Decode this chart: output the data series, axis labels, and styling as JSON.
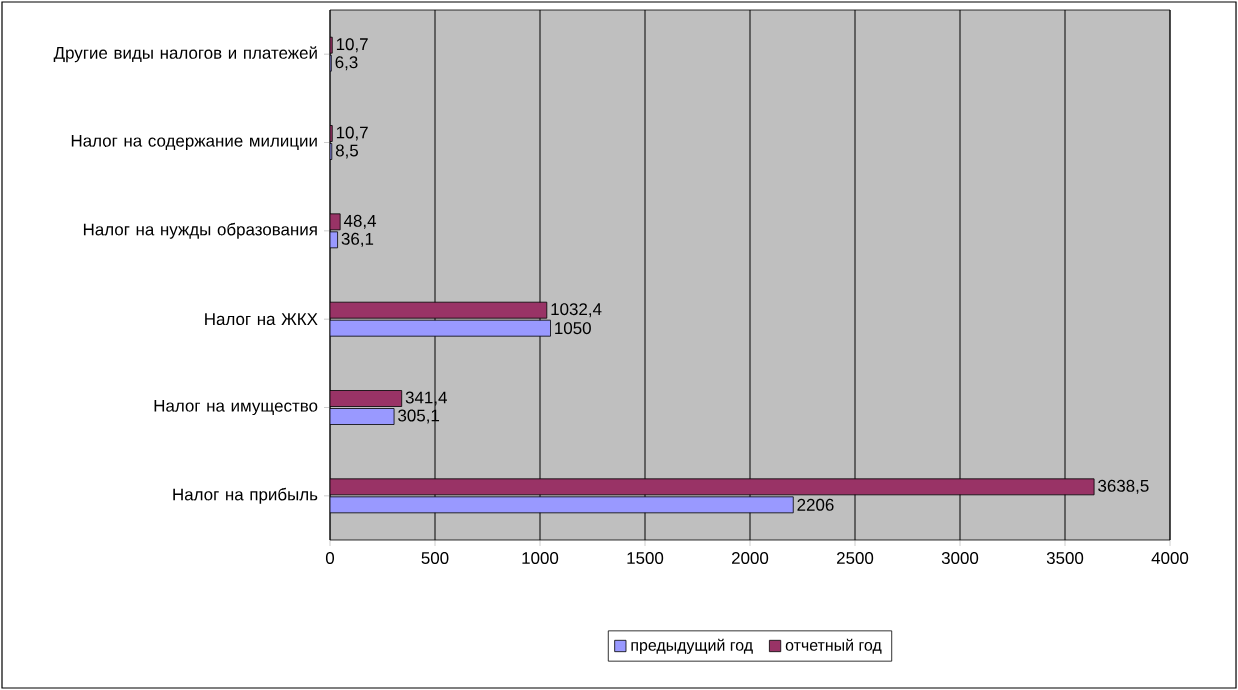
{
  "chart_data": {
    "type": "bar",
    "orientation": "horizontal",
    "categories": [
      "Другие виды налогов и платежей",
      "Налог на содержание милиции",
      "Налог на нужды образования",
      "Налог на ЖКХ",
      "Налог на имущество",
      "Налог на прибыль"
    ],
    "series": [
      {
        "name": "предыдущий год",
        "color": "#9999ff",
        "values": [
          6.3,
          8.5,
          36.1,
          1050,
          305.1,
          2206
        ],
        "value_labels": [
          "6,3",
          "8,5",
          "36,1",
          "1050",
          "305,1",
          "2206"
        ]
      },
      {
        "name": "отчетный год",
        "color": "#993366",
        "values": [
          10.7,
          10.7,
          48.4,
          1032.4,
          341.4,
          3638.5
        ],
        "value_labels": [
          "10,7",
          "10,7",
          "48,4",
          "1032,4",
          "341,4",
          "3638,5"
        ]
      }
    ],
    "xlim": [
      0,
      4000
    ],
    "xticks": [
      0,
      500,
      1000,
      1500,
      2000,
      2500,
      3000,
      3500,
      4000
    ],
    "grid": "x",
    "legend": "bottom"
  }
}
